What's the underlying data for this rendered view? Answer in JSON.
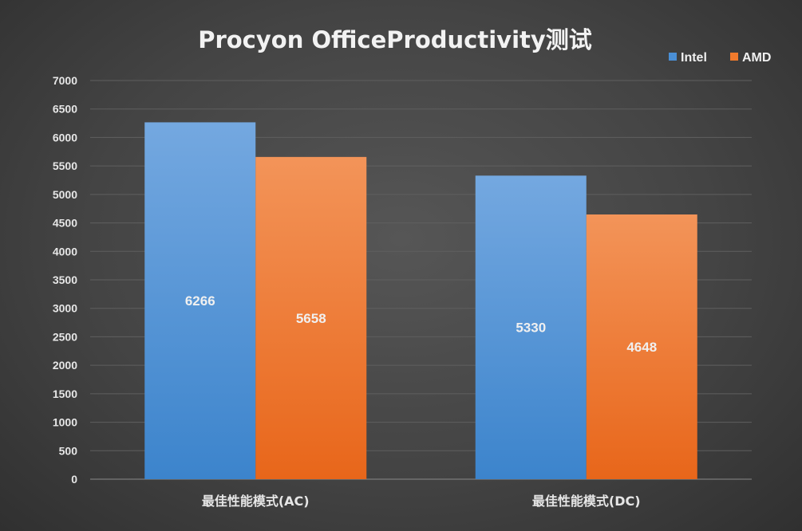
{
  "chart_data": {
    "type": "bar",
    "title": "Procyon OfficeProductivity测试",
    "categories": [
      "最佳性能模式(AC)",
      "最佳性能模式(DC)"
    ],
    "series": [
      {
        "name": "Intel",
        "values": [
          6266,
          5330
        ],
        "color": "#4a8fd6"
      },
      {
        "name": "AMD",
        "values": [
          5658,
          4648
        ],
        "color": "#f07a2c"
      }
    ],
    "ylim": [
      0,
      7000
    ],
    "yticks": [
      0,
      500,
      1000,
      1500,
      2000,
      2500,
      3000,
      3500,
      4000,
      4500,
      5000,
      5500,
      6000,
      6500,
      7000
    ],
    "grid": true,
    "legend": "top-right",
    "data_labels": true
  }
}
